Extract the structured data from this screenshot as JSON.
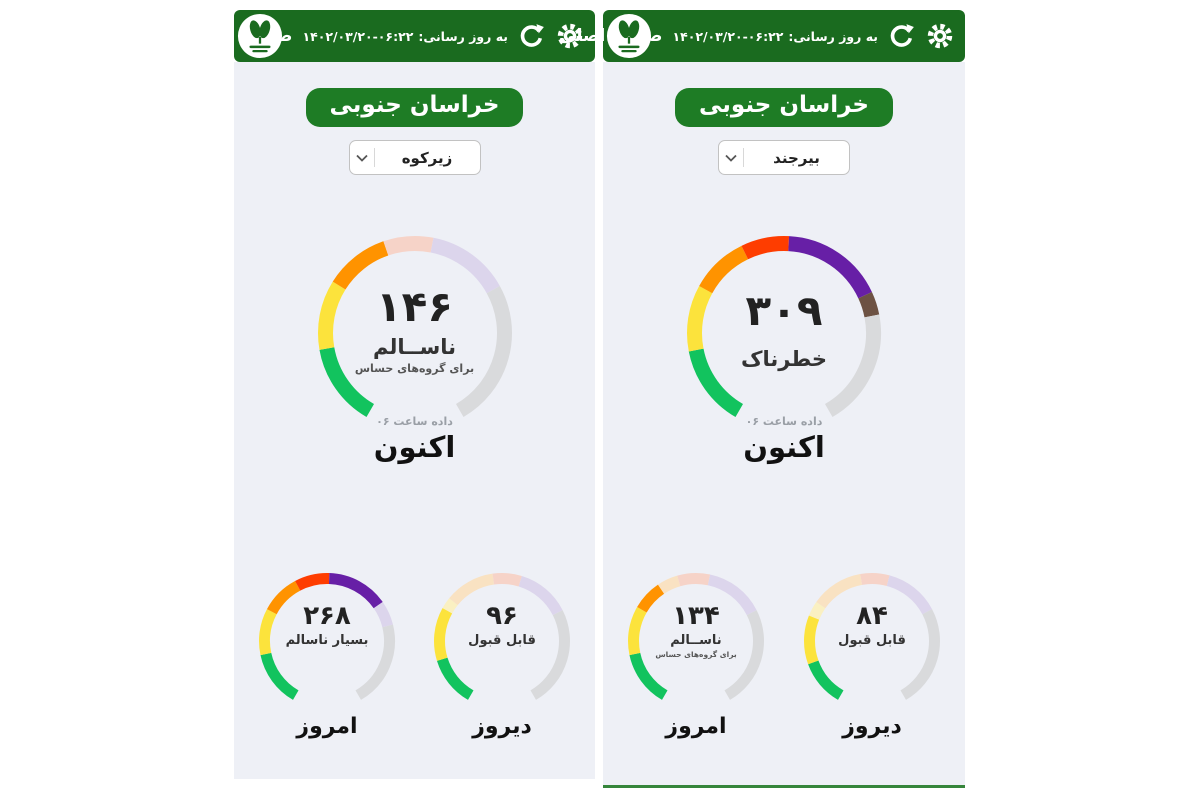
{
  "colors": {
    "header_green": "#1a6b1f",
    "badge_green": "#1e7c25",
    "panel_bg": "#eef0f6",
    "panel_bottom_line": "#35853b",
    "gauge": {
      "green": "#12c35e",
      "yellow": "#fce33c",
      "orange": "#ff9300",
      "red": "#fe3d00",
      "purple": "#671fa6",
      "brown": "#6d5243",
      "faded_yellow": "#faf0c2",
      "faded_orange": "#f9e2c2",
      "faded_red": "#f6d3c8",
      "faded_purple": "#dcd5ec",
      "track": "#d9dadc"
    }
  },
  "panels": [
    {
      "name": "zirkuh",
      "header": {
        "home": "صفحه اصلی",
        "update_label": "به روز رسانی:",
        "updated_at": "۱۴۰۲/۰۳/۲۰-۰۶:۲۲"
      },
      "province": "خراسان جنوبی",
      "city": "زیرکوه",
      "now": {
        "value": "۱۴۶",
        "label": "ناســالم",
        "sublabel": "برای گروه‌های حساس",
        "hour_note": "داده ساعت ۰۶",
        "period": "اکنون",
        "segments": [
          {
            "c": "green",
            "s": 30,
            "e": 80
          },
          {
            "c": "yellow",
            "s": 80,
            "e": 122
          },
          {
            "c": "orange",
            "s": 122,
            "e": 161
          },
          {
            "c": "faded_red",
            "s": 161,
            "e": 191
          },
          {
            "c": "faded_purple",
            "s": 191,
            "e": 241
          },
          {
            "c": "track",
            "s": 241,
            "e": 330
          }
        ]
      },
      "today": {
        "value": "۲۶۸",
        "label": "بسیار ناسالم",
        "period": "امروز",
        "segments": [
          {
            "c": "green",
            "s": 30,
            "e": 78
          },
          {
            "c": "yellow",
            "s": 78,
            "e": 118
          },
          {
            "c": "orange",
            "s": 118,
            "e": 152
          },
          {
            "c": "red",
            "s": 152,
            "e": 182
          },
          {
            "c": "purple",
            "s": 182,
            "e": 235
          },
          {
            "c": "faded_purple",
            "s": 235,
            "e": 256
          },
          {
            "c": "track",
            "s": 256,
            "e": 330
          }
        ]
      },
      "yesterday": {
        "value": "۹۶",
        "label": "قابل قبول",
        "period": "دیروز",
        "segments": [
          {
            "c": "green",
            "s": 30,
            "e": 73
          },
          {
            "c": "yellow",
            "s": 73,
            "e": 119
          },
          {
            "c": "faded_yellow",
            "s": 119,
            "e": 129
          },
          {
            "c": "faded_orange",
            "s": 129,
            "e": 172
          },
          {
            "c": "faded_red",
            "s": 172,
            "e": 197
          },
          {
            "c": "faded_purple",
            "s": 197,
            "e": 243
          },
          {
            "c": "track",
            "s": 243,
            "e": 330
          }
        ]
      }
    },
    {
      "name": "birjand",
      "header": {
        "home": "صفحه اصلی",
        "update_label": "به روز رسانی:",
        "updated_at": "۱۴۰۲/۰۳/۲۰-۰۶:۲۲"
      },
      "province": "خراسان جنوبی",
      "city": "بیرجند",
      "now": {
        "value": "۳۰۹",
        "label": "خطرناک",
        "sublabel": "",
        "hour_note": "داده ساعت ۰۶",
        "period": "اکنون",
        "segments": [
          {
            "c": "green",
            "s": 30,
            "e": 79
          },
          {
            "c": "yellow",
            "s": 79,
            "e": 119
          },
          {
            "c": "orange",
            "s": 119,
            "e": 154
          },
          {
            "c": "red",
            "s": 154,
            "e": 183
          },
          {
            "c": "purple",
            "s": 183,
            "e": 245
          },
          {
            "c": "brown",
            "s": 245,
            "e": 259
          },
          {
            "c": "track",
            "s": 259,
            "e": 330
          }
        ]
      },
      "today": {
        "value": "۱۳۴",
        "label": "ناســالم",
        "sublabel": "برای گروه‌های حساس",
        "period": "امروز",
        "segments": [
          {
            "c": "green",
            "s": 30,
            "e": 78
          },
          {
            "c": "yellow",
            "s": 78,
            "e": 120
          },
          {
            "c": "orange",
            "s": 120,
            "e": 146
          },
          {
            "c": "faded_orange",
            "s": 146,
            "e": 164
          },
          {
            "c": "faded_red",
            "s": 164,
            "e": 192
          },
          {
            "c": "faded_purple",
            "s": 192,
            "e": 243
          },
          {
            "c": "track",
            "s": 243,
            "e": 330
          }
        ]
      },
      "yesterday": {
        "value": "۸۴",
        "label": "قابل قبول",
        "period": "دیروز",
        "segments": [
          {
            "c": "green",
            "s": 30,
            "e": 70
          },
          {
            "c": "yellow",
            "s": 70,
            "e": 112
          },
          {
            "c": "faded_yellow",
            "s": 112,
            "e": 125
          },
          {
            "c": "faded_orange",
            "s": 125,
            "e": 170
          },
          {
            "c": "faded_red",
            "s": 170,
            "e": 195
          },
          {
            "c": "faded_purple",
            "s": 195,
            "e": 242
          },
          {
            "c": "track",
            "s": 242,
            "e": 330
          }
        ]
      }
    }
  ]
}
